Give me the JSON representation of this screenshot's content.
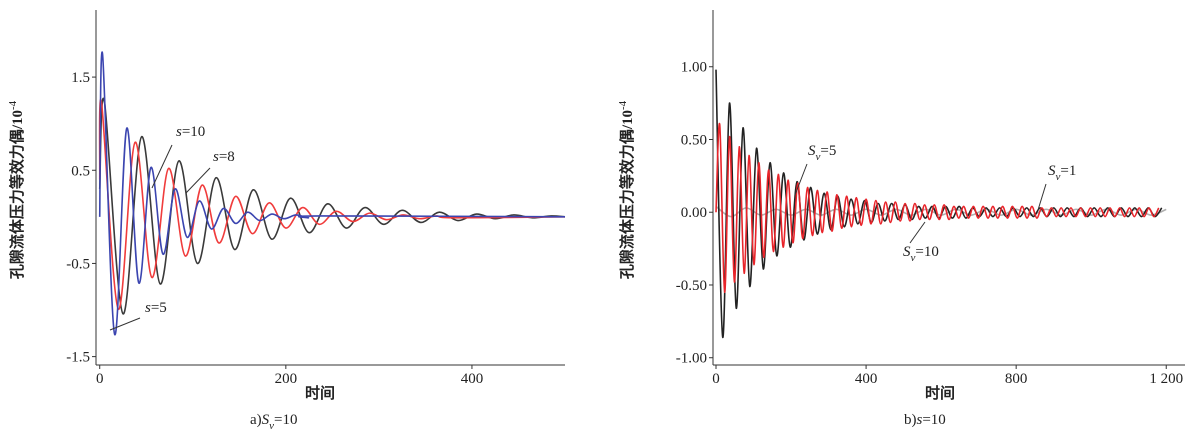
{
  "chart_data": [
    {
      "type": "line",
      "xlabel": "时间",
      "ylabel": "孔隙流体压力等效力偶/10",
      "ylabel_exp": "-4",
      "caption": {
        "label": "a)",
        "var": "S",
        "sub": "v",
        "text": "=10"
      },
      "xlim": [
        -4,
        500
      ],
      "ylim": [
        -1.59,
        2.22
      ],
      "xticks": [
        0,
        200,
        400
      ],
      "yticks": [
        -1.5,
        -0.5,
        0.5,
        1.5
      ],
      "series": [
        {
          "color": "#3a3a3a",
          "x": [
            0,
            5,
            25,
            45,
            65,
            85,
            105,
            125,
            145,
            165,
            185,
            205,
            225,
            245,
            265,
            285,
            305,
            325,
            345,
            365,
            385,
            405,
            425,
            445,
            465,
            485,
            500
          ],
          "values": [
            0.3,
            1.24,
            -1.04,
            0.86,
            -0.72,
            0.6,
            -0.5,
            0.42,
            -0.35,
            0.29,
            -0.24,
            0.2,
            -0.17,
            0.14,
            -0.12,
            0.1,
            -0.08,
            0.07,
            -0.06,
            0.05,
            -0.04,
            0.03,
            -0.02,
            0.02,
            -0.01,
            0.01,
            0
          ]
        },
        {
          "color": "#f03c3c",
          "x": [
            0,
            2,
            20,
            38,
            56,
            74,
            92,
            110,
            128,
            146,
            164,
            182,
            200,
            218,
            236,
            254,
            272,
            290,
            308,
            326,
            344,
            362,
            380,
            500
          ],
          "values": [
            0.4,
            1.22,
            -0.99,
            0.8,
            -0.65,
            0.52,
            -0.42,
            0.34,
            -0.28,
            0.22,
            -0.18,
            0.15,
            -0.12,
            0.1,
            -0.08,
            0.06,
            -0.05,
            0.04,
            -0.03,
            0.02,
            -0.02,
            0.01,
            -0.01,
            0
          ]
        },
        {
          "color": "#3b45b0",
          "x": [
            0,
            3,
            16,
            29,
            42,
            55,
            68,
            81,
            94,
            107,
            120,
            133,
            146,
            159,
            172,
            185,
            198,
            211,
            224,
            237,
            500
          ],
          "values": [
            0,
            1.75,
            -1.26,
            0.95,
            -0.71,
            0.53,
            -0.4,
            0.3,
            -0.22,
            0.17,
            -0.13,
            0.09,
            -0.07,
            0.05,
            -0.04,
            0.03,
            -0.02,
            0.02,
            -0.01,
            0.01,
            0
          ]
        }
      ],
      "annotations": [
        {
          "var": "s",
          "text": "=10"
        },
        {
          "var": "s",
          "text": "=8"
        },
        {
          "var": "s",
          "text": "=5"
        }
      ]
    },
    {
      "type": "line",
      "xlabel": "时间",
      "ylabel": "孔隙流体压力等效力偶/10",
      "ylabel_exp": "-4",
      "caption": {
        "label": "b)",
        "var": "s",
        "text": "=10"
      },
      "xlim": [
        -8,
        1250
      ],
      "ylim": [
        -1.05,
        1.39
      ],
      "xticks": [
        0,
        400,
        800,
        {
          "value": 1200,
          "label": "1 200"
        }
      ],
      "yticks": [
        {
          "value": -1,
          "label": "-1.00"
        },
        {
          "value": -0.5,
          "label": "-0.50"
        },
        {
          "value": 0,
          "label": "0.00"
        },
        {
          "value": 0.5,
          "label": "0.50"
        },
        {
          "value": 1,
          "label": "1.00"
        }
      ],
      "series": [
        {
          "color": "#b0b0b0",
          "x": [
            0,
            40,
            80,
            120,
            160,
            200,
            240,
            280,
            320,
            360,
            400,
            440,
            480,
            520,
            560,
            600,
            640,
            680,
            720,
            760,
            800,
            840,
            880,
            920,
            960,
            1000,
            1040,
            1080,
            1120,
            1160,
            1200
          ],
          "values": [
            0.04,
            -0.03,
            0.03,
            -0.02,
            0.02,
            -0.02,
            0.02,
            -0.02,
            0.02,
            -0.02,
            0.02,
            -0.02,
            0.02,
            -0.02,
            0.02,
            -0.02,
            0.02,
            -0.02,
            0.02,
            -0.02,
            0.02,
            -0.02,
            0.02,
            -0.02,
            0.02,
            -0.02,
            0.02,
            -0.02,
            0.02,
            -0.02,
            0.02
          ]
        },
        {
          "color": "#222222",
          "x": [
            0,
            18,
            36,
            54,
            72,
            90,
            108,
            126,
            144,
            162,
            180,
            198,
            216,
            234,
            252,
            270,
            288,
            306,
            324,
            342,
            360,
            378,
            396,
            414,
            432,
            450,
            468,
            486,
            504,
            522,
            540,
            558,
            576,
            594,
            612,
            630,
            648,
            666,
            684,
            702,
            720,
            738,
            756,
            774,
            792,
            810,
            828,
            846,
            864,
            882,
            900,
            918,
            936,
            954,
            972,
            990,
            1008,
            1026,
            1044,
            1062,
            1080,
            1098,
            1116,
            1134,
            1152,
            1170,
            1188
          ],
          "values": [
            0.98,
            -0.86,
            0.75,
            -0.66,
            0.58,
            -0.51,
            0.44,
            -0.39,
            0.34,
            -0.3,
            0.27,
            -0.24,
            0.21,
            -0.19,
            0.17,
            -0.15,
            0.13,
            -0.12,
            0.11,
            -0.1,
            0.09,
            -0.08,
            0.08,
            -0.07,
            0.06,
            -0.06,
            0.06,
            -0.05,
            0.05,
            -0.05,
            0.04,
            -0.04,
            0.04,
            -0.04,
            0.04,
            -0.04,
            0.04,
            -0.04,
            0.03,
            -0.03,
            0.03,
            -0.03,
            0.03,
            -0.03,
            0.03,
            -0.03,
            0.03,
            -0.03,
            0.03,
            -0.03,
            0.03,
            -0.03,
            0.03,
            -0.03,
            0.03,
            -0.03,
            0.03,
            -0.03,
            0.03,
            -0.03,
            0.03,
            -0.03,
            0.03,
            -0.03,
            0.03,
            -0.03,
            0.03
          ]
        },
        {
          "color": "#e8242a",
          "x": [
            0,
            10,
            23,
            36,
            49,
            62,
            75,
            88,
            101,
            114,
            127,
            140,
            153,
            166,
            179,
            192,
            205,
            218,
            231,
            244,
            257,
            270,
            283,
            296,
            309,
            322,
            335,
            348,
            361,
            374,
            387,
            400,
            413,
            426,
            439,
            452,
            465,
            478,
            491,
            504,
            517,
            530,
            543,
            556,
            569,
            582,
            595,
            608,
            621,
            634,
            647,
            660,
            673,
            686,
            699,
            712,
            725,
            738,
            751,
            764,
            777,
            790,
            803,
            816,
            829,
            842,
            855,
            868,
            881,
            894,
            907,
            920,
            933,
            946,
            959,
            972,
            985,
            998,
            1011,
            1024,
            1037,
            1050,
            1063,
            1076,
            1089,
            1102,
            1115,
            1128,
            1141,
            1154,
            1167,
            1180
          ],
          "values": [
            0,
            0.6,
            -0.55,
            0.52,
            -0.48,
            0.45,
            -0.42,
            0.39,
            -0.36,
            0.34,
            -0.31,
            0.29,
            -0.27,
            0.26,
            -0.24,
            0.22,
            -0.21,
            0.2,
            -0.18,
            0.17,
            -0.16,
            0.15,
            -0.14,
            0.14,
            -0.13,
            0.12,
            -0.11,
            0.11,
            -0.1,
            0.1,
            -0.09,
            0.09,
            -0.08,
            0.08,
            -0.08,
            0.07,
            -0.07,
            0.07,
            -0.06,
            0.06,
            -0.06,
            0.06,
            -0.05,
            0.05,
            -0.05,
            0.05,
            -0.05,
            0.05,
            -0.05,
            0.04,
            -0.04,
            0.04,
            -0.04,
            0.04,
            -0.04,
            0.04,
            -0.04,
            0.04,
            -0.04,
            0.04,
            -0.04,
            0.04,
            -0.04,
            0.04,
            -0.04,
            0.04,
            -0.04,
            0.03,
            -0.03,
            0.03,
            -0.03,
            0.03,
            -0.03,
            0.03,
            -0.03,
            0.03,
            -0.03,
            0.03,
            -0.03,
            0.03,
            -0.03,
            0.03,
            -0.03,
            0.03,
            -0.03,
            0.03,
            -0.03,
            0.03,
            -0.03,
            0.03,
            -0.03,
            0.03
          ]
        }
      ],
      "annotations": [
        {
          "var": "S",
          "sub": "v",
          "text": "=5"
        },
        {
          "var": "S",
          "sub": "v",
          "text": "=1"
        },
        {
          "var": "S",
          "sub": "v",
          "text": "=10"
        }
      ]
    }
  ]
}
